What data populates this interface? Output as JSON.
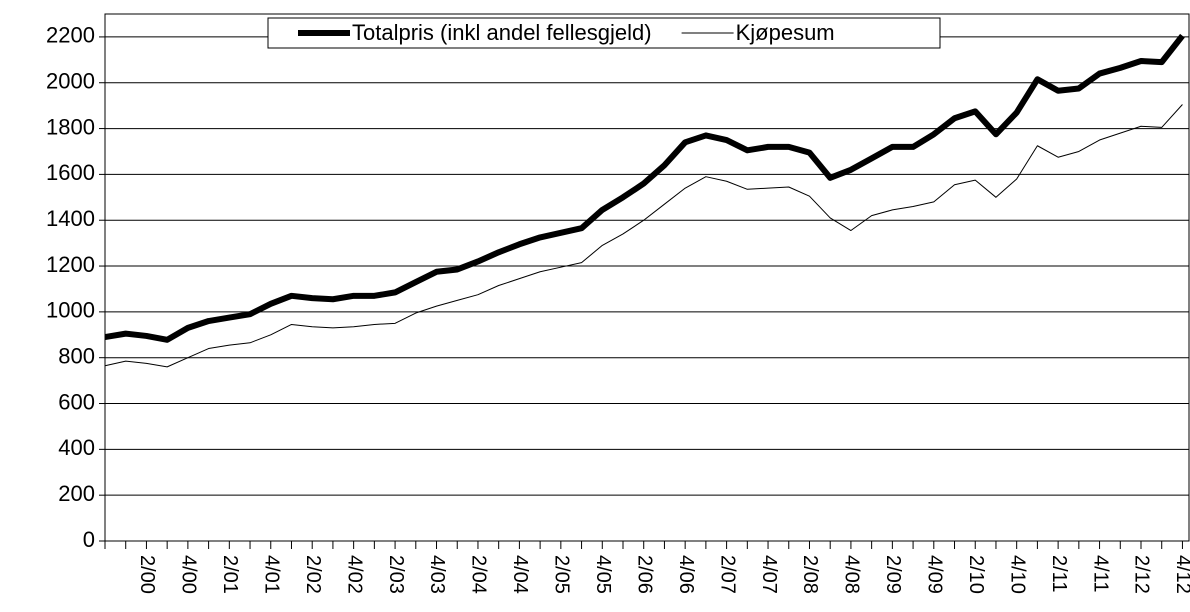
{
  "chart_data": {
    "type": "line",
    "categories": [
      null,
      null,
      "2/00",
      null,
      "4/00",
      null,
      "2/01",
      null,
      "4/01",
      null,
      "2/02",
      null,
      "4/02",
      null,
      "2/03",
      null,
      "4/03",
      null,
      "2/04",
      null,
      "4/04",
      null,
      "2/05",
      null,
      "4/05",
      null,
      "2/06",
      null,
      "4/06",
      null,
      "2/07",
      null,
      "4/07",
      null,
      "2/08",
      null,
      "4/08",
      null,
      "2/09",
      null,
      "4/09",
      null,
      "2/10",
      null,
      "4/10",
      null,
      "2/11",
      null,
      "4/11",
      null,
      "2/12",
      null,
      "4/12"
    ],
    "series": [
      {
        "name": "Totalpris (inkl andel fellesgjeld)",
        "color": "#000000",
        "width": 6,
        "values": [
          890,
          905,
          895,
          878,
          930,
          960,
          975,
          990,
          1035,
          1070,
          1060,
          1055,
          1070,
          1070,
          1085,
          1130,
          1175,
          1185,
          1220,
          1260,
          1295,
          1325,
          1345,
          1365,
          1445,
          1500,
          1560,
          1640,
          1740,
          1770,
          1750,
          1705,
          1720,
          1720,
          1695,
          1585,
          1620,
          1670,
          1720,
          1720,
          1775,
          1845,
          1875,
          1775,
          1870,
          2015,
          1965,
          1975,
          2040,
          2065,
          2095,
          2090,
          2205
        ]
      },
      {
        "name": "Kjøpesum",
        "color": "#000000",
        "width": 1,
        "values": [
          765,
          785,
          775,
          760,
          800,
          840,
          855,
          865,
          900,
          945,
          935,
          930,
          935,
          945,
          950,
          995,
          1025,
          1050,
          1075,
          1115,
          1145,
          1175,
          1195,
          1215,
          1290,
          1340,
          1400,
          1470,
          1540,
          1590,
          1570,
          1535,
          1540,
          1545,
          1505,
          1410,
          1355,
          1420,
          1445,
          1460,
          1480,
          1555,
          1575,
          1500,
          1580,
          1725,
          1675,
          1700,
          1750,
          1780,
          1810,
          1805,
          1905
        ]
      }
    ],
    "ylim": [
      0,
      2300
    ],
    "yticks": [
      0,
      200,
      400,
      600,
      800,
      1000,
      1200,
      1400,
      1600,
      1800,
      2000,
      2200
    ],
    "grid": true,
    "legend": "top"
  }
}
